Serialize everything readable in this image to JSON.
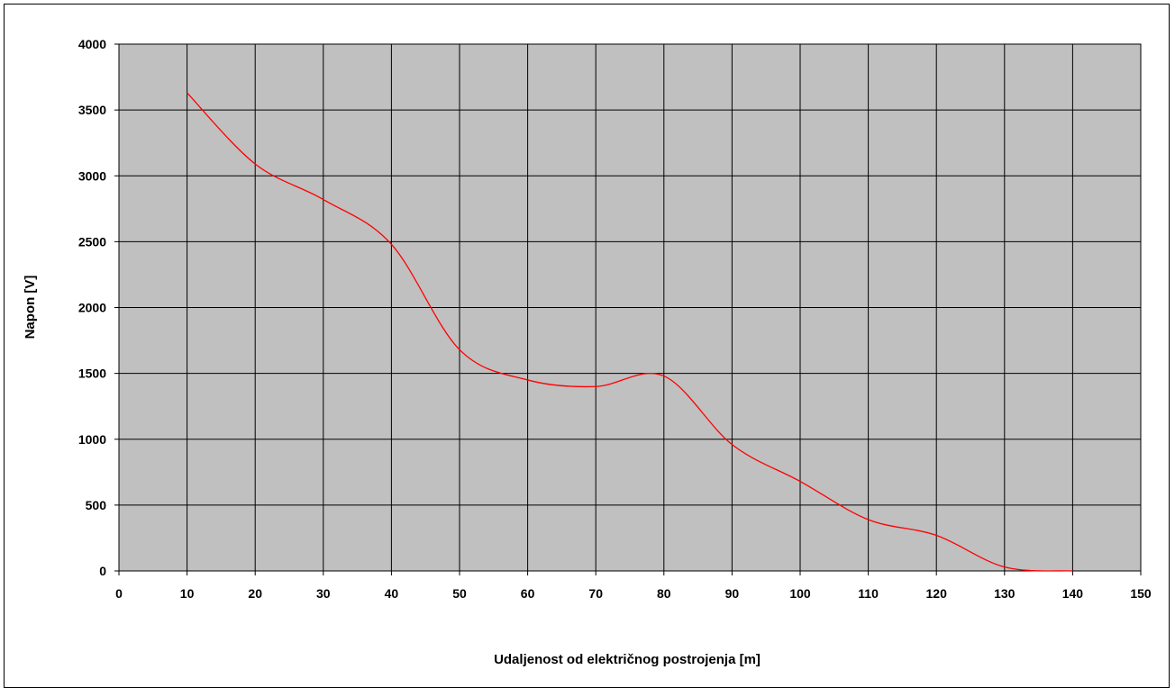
{
  "chart_data": {
    "type": "line",
    "title": "",
    "xlabel": "Udaljenost od električnog postrojenja [m]",
    "ylabel": "Napon [V]",
    "xlim": [
      0,
      150
    ],
    "ylim": [
      0,
      4000
    ],
    "x_ticks": [
      0,
      10,
      20,
      30,
      40,
      50,
      60,
      70,
      80,
      90,
      100,
      110,
      120,
      130,
      140,
      150
    ],
    "y_ticks": [
      0,
      500,
      1000,
      1500,
      2000,
      2500,
      3000,
      3500,
      4000
    ],
    "grid": true,
    "legend": "none",
    "smooth": true,
    "series": [
      {
        "x": [
          10,
          20,
          30,
          40,
          50,
          60,
          70,
          80,
          90,
          100,
          110,
          120,
          130,
          140
        ],
        "values": [
          3630,
          3090,
          2820,
          2480,
          1680,
          1450,
          1400,
          1480,
          960,
          680,
          390,
          270,
          30,
          0
        ]
      }
    ],
    "colors": {
      "plot_background": "#c0c0c0",
      "grid": "#000000",
      "line": "#ff0000"
    }
  }
}
